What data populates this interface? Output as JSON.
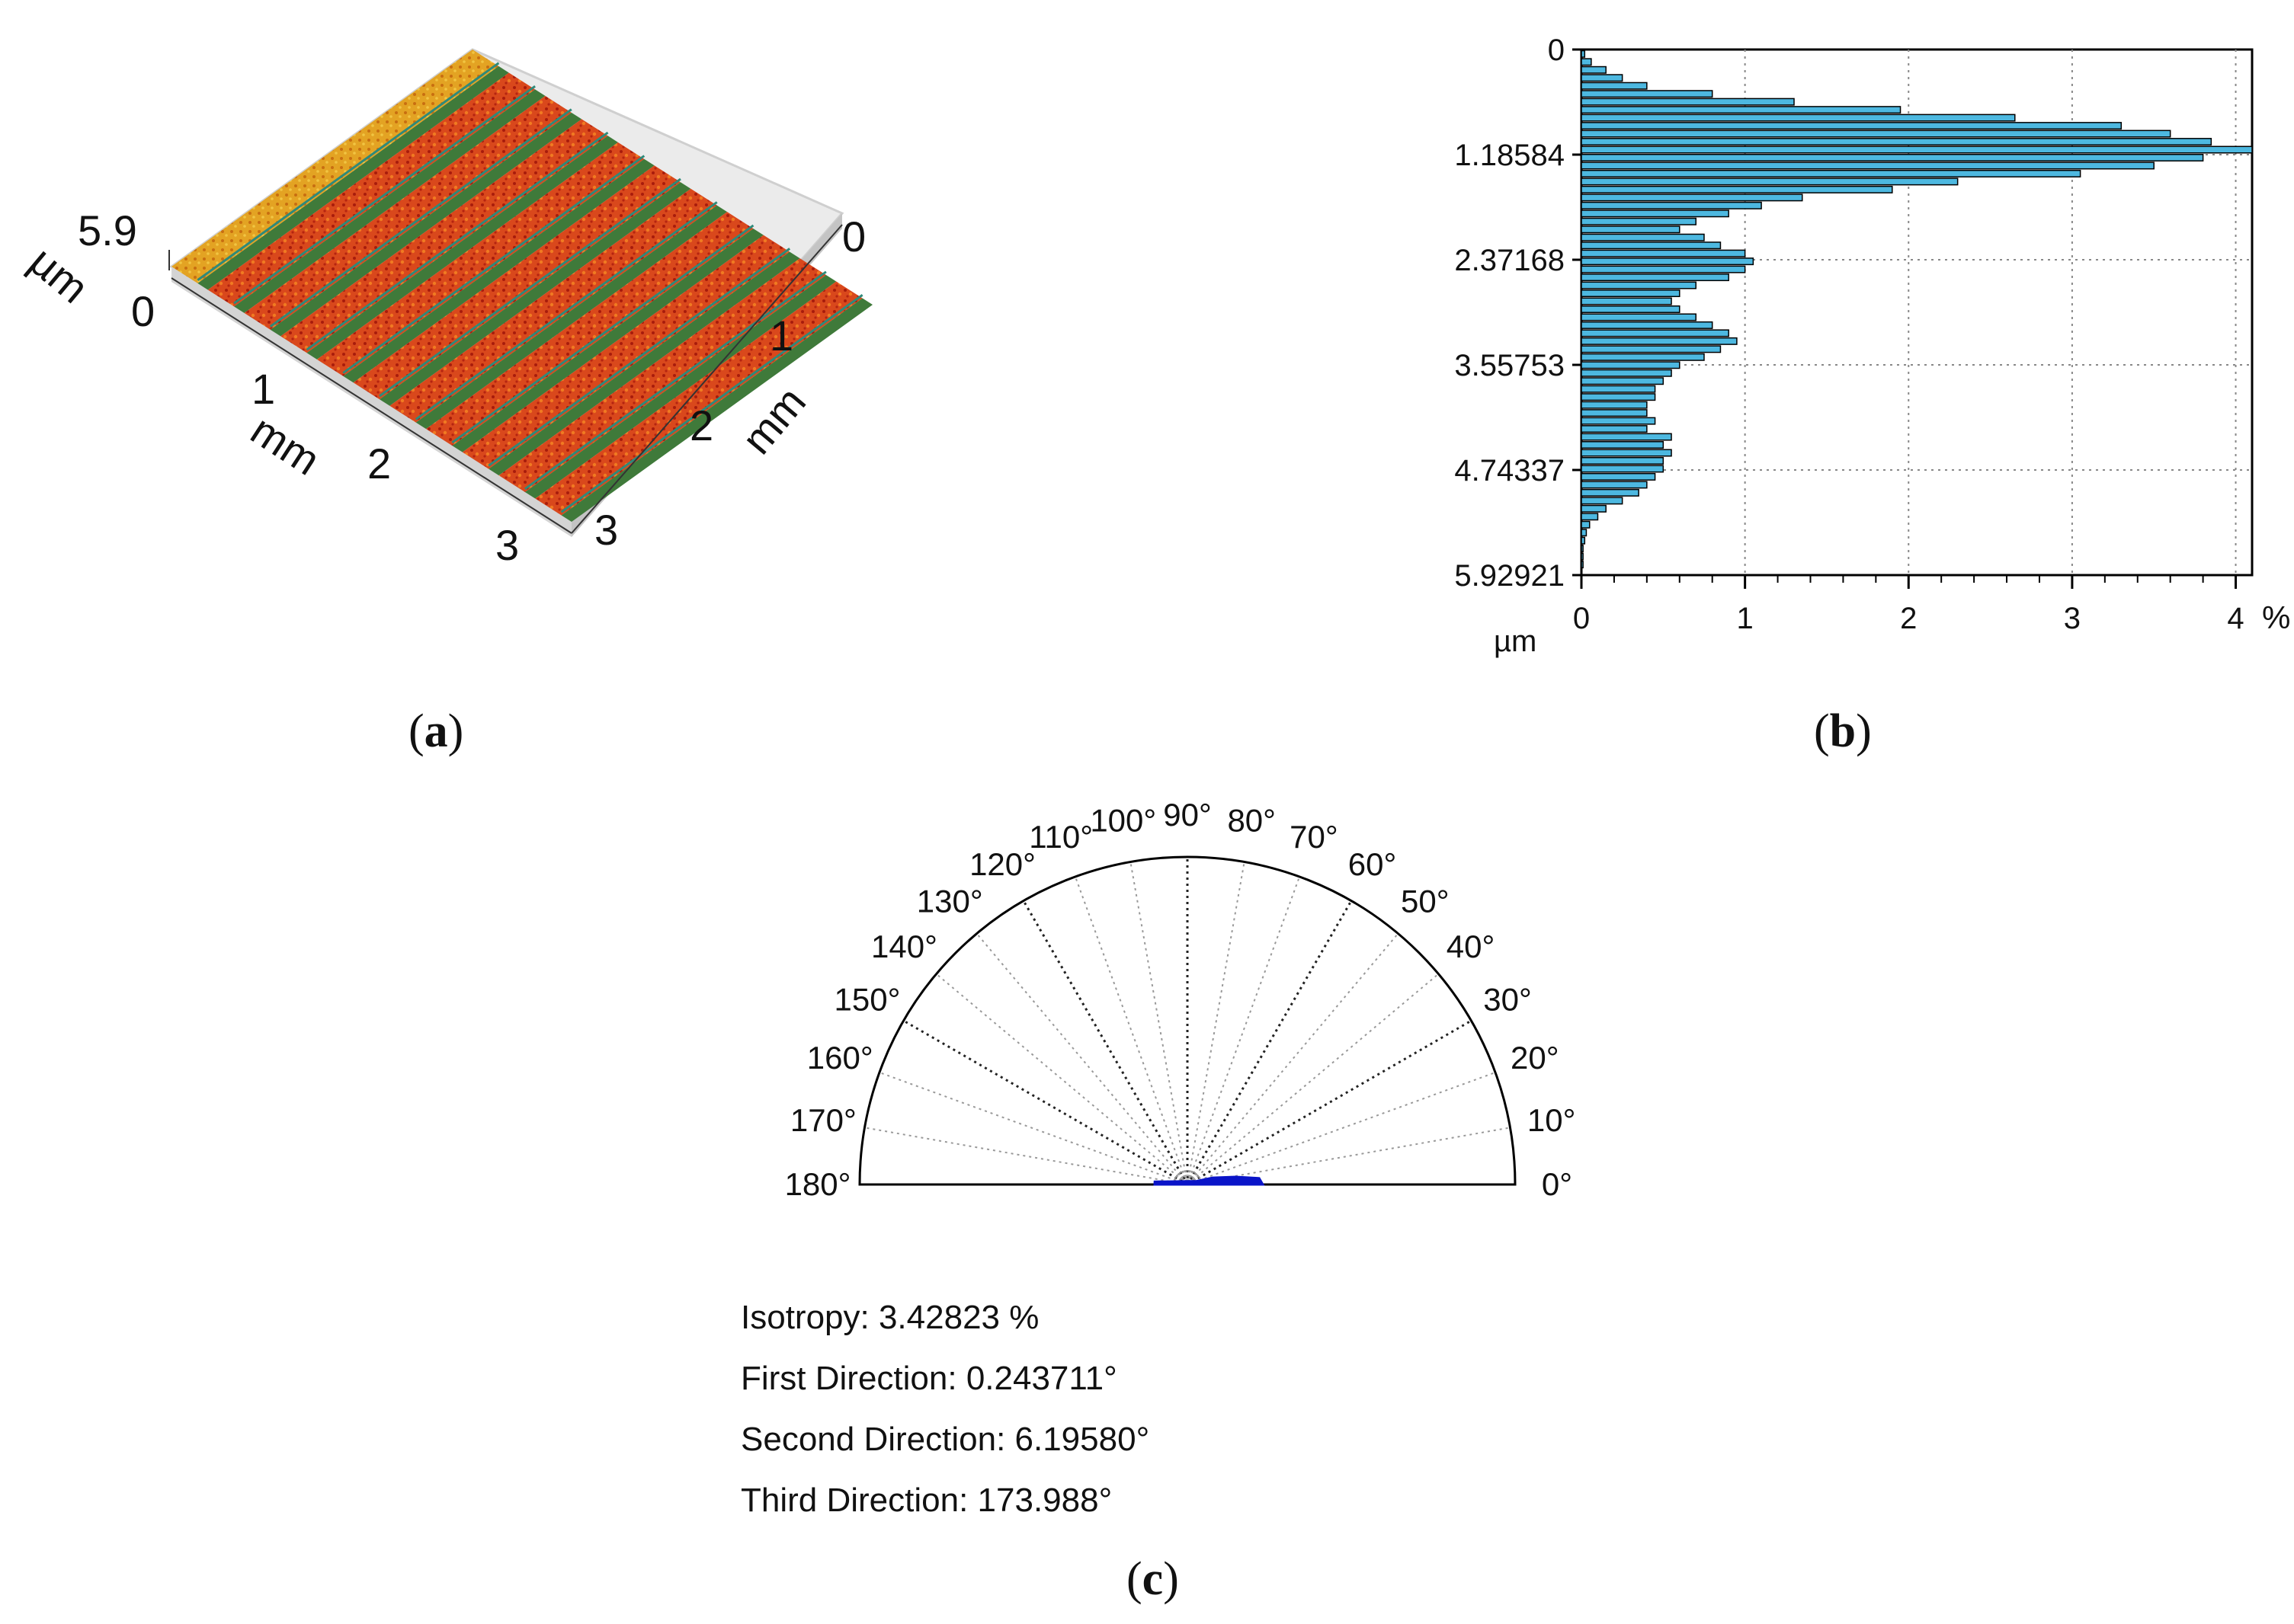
{
  "panel_a": {
    "caption_letter": "a",
    "z_max_label": "5.9",
    "z_min_label": "0",
    "z_unit": "µm",
    "x_ticks": [
      "1",
      "2",
      "3"
    ],
    "x_unit": "mm",
    "y_ticks": [
      "0",
      "1",
      "2",
      "3"
    ],
    "y_unit": "mm",
    "stripe_colors": {
      "ridge": "#d2431a",
      "groove": "#3f7a3a",
      "base": "#e0a020"
    }
  },
  "panel_b": {
    "caption_letter": "b",
    "unit_label": "µm",
    "pct_label": "%"
  },
  "panel_c": {
    "caption_letter": "c",
    "angle_labels": [
      "0°",
      "10°",
      "20°",
      "30°",
      "40°",
      "50°",
      "60°",
      "70°",
      "80°",
      "90°",
      "100°",
      "110°",
      "120°",
      "130°",
      "140°",
      "150°",
      "160°",
      "170°",
      "180°"
    ],
    "isotropy_label": "Isotropy: 3.42823 %",
    "first_direction_label": "First Direction: 0.243711°",
    "second_direction_label": "Second Direction: 6.19580°",
    "third_direction_label": "Third Direction: 173.988°",
    "isotropy": 3.42823,
    "first_direction": 0.243711,
    "second_direction": 6.1958,
    "third_direction": 173.988
  },
  "chart_data": [
    {
      "type": "bar",
      "orientation": "horizontal",
      "ylabel": "µm",
      "y_ticks": [
        "0",
        "1.18584",
        "2.37168",
        "3.55753",
        "4.74337",
        "5.92921"
      ],
      "x_ticks": [
        "0",
        "1",
        "2",
        "3",
        "4"
      ],
      "x_unit": "%",
      "ylim": [
        0,
        5.92921
      ],
      "xlim": [
        0,
        4.1
      ],
      "grid": true,
      "bar_color": "#4db8e0",
      "bin_width": 0.09,
      "y": [
        0.05,
        0.14,
        0.23,
        0.32,
        0.41,
        0.5,
        0.59,
        0.68,
        0.77,
        0.86,
        0.95,
        1.04,
        1.13,
        1.22,
        1.31,
        1.4,
        1.49,
        1.58,
        1.67,
        1.76,
        1.85,
        1.94,
        2.03,
        2.12,
        2.21,
        2.3,
        2.39,
        2.48,
        2.57,
        2.66,
        2.75,
        2.84,
        2.93,
        3.02,
        3.11,
        3.2,
        3.29,
        3.38,
        3.47,
        3.56,
        3.65,
        3.74,
        3.83,
        3.92,
        4.01,
        4.1,
        4.19,
        4.28,
        4.37,
        4.46,
        4.55,
        4.64,
        4.73,
        4.82,
        4.91,
        5.0,
        5.09,
        5.18,
        5.27,
        5.36,
        5.45,
        5.54,
        5.63,
        5.72,
        5.81
      ],
      "values": [
        0.02,
        0.06,
        0.15,
        0.25,
        0.4,
        0.8,
        1.3,
        1.95,
        2.65,
        3.3,
        3.6,
        3.85,
        4.1,
        3.8,
        3.5,
        3.05,
        2.3,
        1.9,
        1.35,
        1.1,
        0.9,
        0.7,
        0.6,
        0.75,
        0.85,
        1.0,
        1.05,
        1.0,
        0.9,
        0.7,
        0.6,
        0.55,
        0.6,
        0.7,
        0.8,
        0.9,
        0.95,
        0.85,
        0.75,
        0.6,
        0.55,
        0.5,
        0.45,
        0.45,
        0.4,
        0.4,
        0.45,
        0.4,
        0.55,
        0.5,
        0.55,
        0.5,
        0.5,
        0.45,
        0.4,
        0.35,
        0.25,
        0.15,
        0.1,
        0.05,
        0.03,
        0.02,
        0.01,
        0.01,
        0.01
      ]
    },
    {
      "type": "polar-rose",
      "angles_deg": [
        0,
        5,
        10,
        15,
        20,
        175,
        180
      ],
      "radius_max": 100,
      "values": [
        23,
        22,
        15,
        8,
        3,
        10,
        10
      ],
      "color": "#0a14c8",
      "grid": true
    }
  ]
}
